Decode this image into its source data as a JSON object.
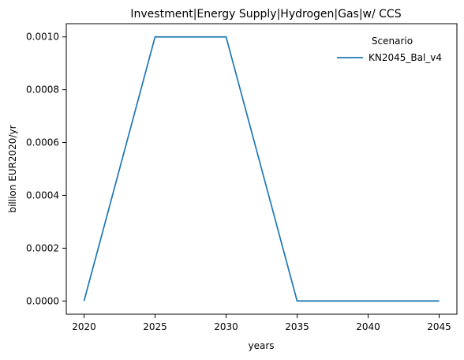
{
  "chart_data": {
    "type": "line",
    "title": "Investment|Energy Supply|Hydrogen|Gas|w/ CCS",
    "xlabel": "years",
    "ylabel": "billion EUR2020/yr",
    "x": [
      2020,
      2025,
      2030,
      2035,
      2040,
      2045
    ],
    "series": [
      {
        "name": "KN2045_Bal_v4",
        "color": "#1f77b4",
        "values": [
          0.0,
          0.001,
          0.001,
          0.0,
          0.0,
          0.0
        ]
      }
    ],
    "xticks": [
      "2020",
      "2025",
      "2030",
      "2035",
      "2040",
      "2045"
    ],
    "yticks": [
      "0.0000",
      "0.0002",
      "0.0004",
      "0.0006",
      "0.0008",
      "0.0010"
    ],
    "xlim": [
      2018.75,
      2046.25
    ],
    "ylim": [
      -5e-05,
      0.00105
    ],
    "grid": false,
    "legend": {
      "title": "Scenario",
      "placement": "top-right"
    }
  }
}
